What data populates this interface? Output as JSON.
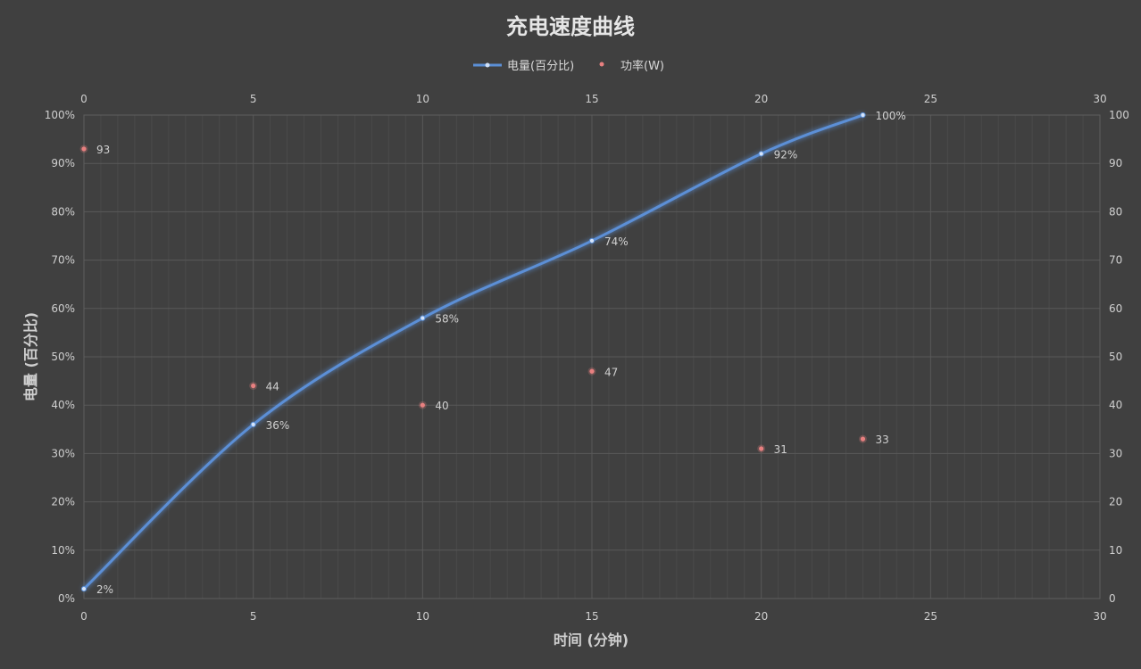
{
  "chart_data": {
    "type": "line",
    "title": "充电速度曲线",
    "xlabel": "时间 (分钟)",
    "ylabel": "电量 (百分比)",
    "xlim": [
      0,
      30
    ],
    "ylim_left": [
      0,
      100
    ],
    "ylim_right": [
      0,
      100
    ],
    "x_ticks": [
      "0",
      "5",
      "10",
      "15",
      "20",
      "25",
      "30"
    ],
    "y_left_ticks": [
      "0%",
      "10%",
      "20%",
      "30%",
      "40%",
      "50%",
      "60%",
      "70%",
      "80%",
      "90%",
      "100%"
    ],
    "y_right_ticks": [
      "0",
      "10",
      "20",
      "30",
      "40",
      "50",
      "60",
      "70",
      "80",
      "90",
      "100"
    ],
    "x_top_ticks": [
      "0",
      "5",
      "10",
      "15",
      "20",
      "25",
      "30"
    ],
    "grid": true,
    "legend_position": "top",
    "series": [
      {
        "name": "电量(百分比)",
        "kind": "line-smooth",
        "axis": "left",
        "color": "#5b8fd6",
        "x": [
          0,
          5,
          10,
          15,
          20,
          23
        ],
        "y": [
          2,
          36,
          58,
          74,
          92,
          100
        ],
        "labels": [
          "2%",
          "36%",
          "58%",
          "74%",
          "92%",
          "100%"
        ]
      },
      {
        "name": "功率(W)",
        "kind": "scatter",
        "axis": "right",
        "color": "#e88080",
        "x": [
          0,
          5,
          10,
          15,
          20,
          23
        ],
        "y": [
          93,
          44,
          40,
          47,
          31,
          33
        ],
        "labels": [
          "93",
          "44",
          "40",
          "47",
          "31",
          "33"
        ]
      }
    ]
  }
}
